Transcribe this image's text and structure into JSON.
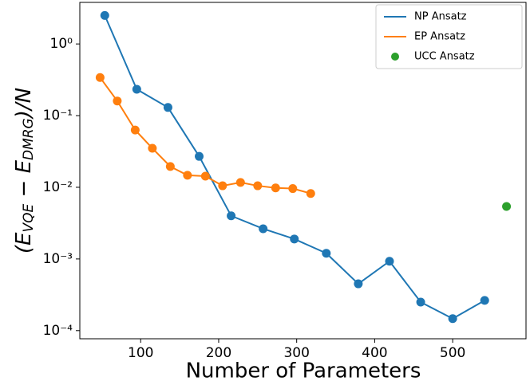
{
  "chart_data": {
    "type": "line",
    "xlabel": "Number of Parameters",
    "ylabel": [
      "(E",
      "VQE",
      " − E",
      "DMRG",
      ")/N"
    ],
    "log_y": true,
    "xlim": [
      22,
      594
    ],
    "ylim": [
      7.7e-05,
      3.8
    ],
    "xticks": [
      100,
      200,
      300,
      400,
      500
    ],
    "yticks": [
      {
        "value": 1,
        "label": "10⁰"
      },
      {
        "value": 0.1,
        "label": "10⁻¹"
      },
      {
        "value": 0.01,
        "label": "10⁻²"
      },
      {
        "value": 0.001,
        "label": "10⁻³"
      },
      {
        "value": 0.0001,
        "label": "10⁻⁴"
      }
    ],
    "legend": "upper right",
    "series": [
      {
        "name": "NP Ansatz",
        "color": "#1f77b4",
        "style": "line-marker",
        "x": [
          54,
          95,
          135,
          175,
          216,
          257,
          297,
          338,
          379,
          419,
          459,
          500,
          541
        ],
        "values": [
          2.5,
          0.233,
          0.13,
          0.027,
          0.004,
          0.00264,
          0.0019,
          0.0012,
          0.00045,
          0.00093,
          0.00025,
          0.000147,
          0.000264
        ]
      },
      {
        "name": "EP Ansatz",
        "color": "#ff7f0e",
        "style": "line-marker",
        "x": [
          48,
          70,
          93,
          115,
          138,
          160,
          183,
          205,
          228,
          250,
          273,
          295,
          318
        ],
        "values": [
          0.34,
          0.16,
          0.063,
          0.035,
          0.0195,
          0.0147,
          0.0143,
          0.0105,
          0.0117,
          0.0105,
          0.0098,
          0.0096,
          0.0082
        ]
      },
      {
        "name": "UCC Ansatz",
        "color": "#2ca02c",
        "style": "marker",
        "x": [
          569
        ],
        "values": [
          0.0054
        ]
      }
    ]
  }
}
